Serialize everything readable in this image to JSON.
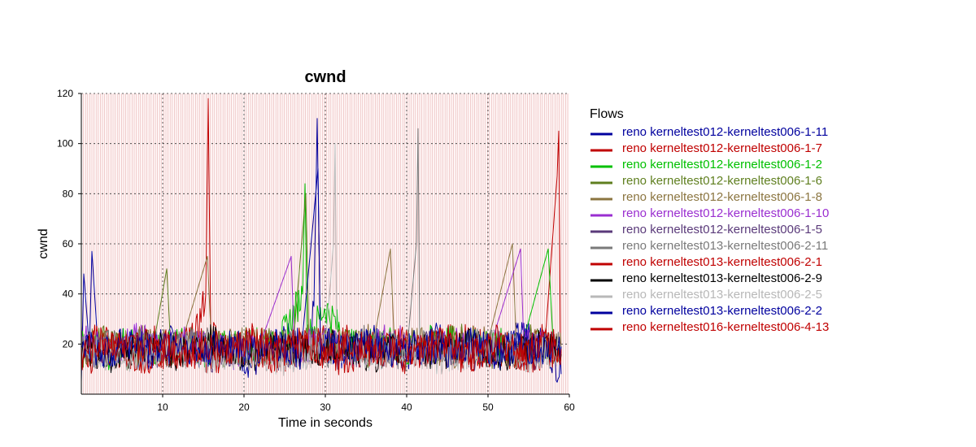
{
  "chart_data": {
    "type": "line",
    "title": "cwnd",
    "xlabel": "Time in seconds",
    "ylabel": "cwnd",
    "xlim": [
      0,
      60
    ],
    "ylim": [
      0,
      120
    ],
    "xticks": [
      10,
      20,
      30,
      40,
      50,
      60
    ],
    "yticks": [
      20,
      40,
      60,
      80,
      100,
      120
    ],
    "x_tick_labels": [
      "10",
      "20",
      "30",
      "40",
      "50",
      "60"
    ],
    "y_tick_labels": [
      "20",
      "40",
      "60",
      "80",
      "100",
      "120"
    ],
    "grid": true,
    "legend_title": "Flows",
    "legend_position": "right",
    "series": [
      {
        "name": "reno kerneltest012-kerneltest006-1-11",
        "color": "#00009e",
        "points": [
          [
            0,
            5
          ],
          [
            0.3,
            48
          ],
          [
            1,
            18
          ],
          [
            1.3,
            57
          ],
          [
            2,
            21
          ],
          [
            3,
            15
          ],
          [
            5,
            20
          ],
          [
            8,
            14
          ],
          [
            10,
            22
          ],
          [
            14,
            17
          ],
          [
            18,
            20
          ],
          [
            21,
            12
          ],
          [
            25,
            22
          ],
          [
            28,
            18
          ],
          [
            28.6,
            35
          ],
          [
            29,
            110
          ],
          [
            29.4,
            20
          ],
          [
            32,
            17
          ],
          [
            36,
            21
          ],
          [
            40,
            16
          ],
          [
            44,
            22
          ],
          [
            48,
            18
          ],
          [
            52,
            20
          ],
          [
            55,
            24
          ],
          [
            58,
            15
          ],
          [
            59,
            8
          ]
        ]
      },
      {
        "name": "reno kerneltest012-kerneltest006-1-7",
        "color": "#c00000",
        "points": [
          [
            0,
            18
          ],
          [
            2,
            22
          ],
          [
            5,
            17
          ],
          [
            8,
            21
          ],
          [
            11,
            19
          ],
          [
            14,
            22
          ],
          [
            15.3,
            40
          ],
          [
            15.6,
            118
          ],
          [
            15.9,
            25
          ],
          [
            18,
            18
          ],
          [
            22,
            20
          ],
          [
            26,
            16
          ],
          [
            30,
            21
          ],
          [
            34,
            18
          ],
          [
            38,
            20
          ],
          [
            42,
            17
          ],
          [
            46,
            22
          ],
          [
            50,
            19
          ],
          [
            54,
            16
          ],
          [
            57,
            20
          ],
          [
            58.5,
            87
          ],
          [
            58.7,
            105
          ],
          [
            58.9,
            20
          ]
        ]
      },
      {
        "name": "reno kerneltest012-kerneltest006-1-2",
        "color": "#00c000",
        "points": [
          [
            0,
            20
          ],
          [
            3,
            16
          ],
          [
            6,
            21
          ],
          [
            9,
            18
          ],
          [
            12,
            20
          ],
          [
            16,
            17
          ],
          [
            20,
            21
          ],
          [
            24,
            18
          ],
          [
            27.2,
            40
          ],
          [
            27.5,
            84
          ],
          [
            27.8,
            22
          ],
          [
            30,
            35
          ],
          [
            33,
            19
          ],
          [
            37,
            21
          ],
          [
            40,
            17
          ],
          [
            44,
            22
          ],
          [
            48,
            18
          ],
          [
            51,
            20
          ],
          [
            54,
            17
          ],
          [
            57.4,
            58
          ],
          [
            58,
            21
          ]
        ]
      },
      {
        "name": "reno kerneltest012-kerneltest006-1-6",
        "color": "#5f7f1f",
        "points": [
          [
            0,
            17
          ],
          [
            3,
            21
          ],
          [
            6,
            16
          ],
          [
            9,
            22
          ],
          [
            10.5,
            50
          ],
          [
            11,
            18
          ],
          [
            14,
            21
          ],
          [
            18,
            17
          ],
          [
            22,
            20
          ],
          [
            26,
            18
          ],
          [
            27.6,
            80
          ],
          [
            28,
            19
          ],
          [
            31,
            21
          ],
          [
            35,
            17
          ],
          [
            39,
            20
          ],
          [
            43,
            18
          ],
          [
            47,
            22
          ],
          [
            51,
            16
          ],
          [
            55,
            21
          ],
          [
            58,
            19
          ]
        ]
      },
      {
        "name": "reno kerneltest012-kerneltest006-1-8",
        "color": "#8b7540",
        "points": [
          [
            0,
            20
          ],
          [
            4,
            18
          ],
          [
            8,
            21
          ],
          [
            12,
            17
          ],
          [
            15.5,
            55
          ],
          [
            16,
            19
          ],
          [
            20,
            20
          ],
          [
            24,
            16
          ],
          [
            28,
            21
          ],
          [
            32,
            18
          ],
          [
            36,
            22
          ],
          [
            38,
            58
          ],
          [
            38.5,
            19
          ],
          [
            42,
            20
          ],
          [
            46,
            17
          ],
          [
            50,
            21
          ],
          [
            53,
            60
          ],
          [
            53.5,
            18
          ],
          [
            57,
            20
          ],
          [
            59,
            18
          ]
        ]
      },
      {
        "name": "reno kerneltest012-kerneltest006-1-10",
        "color": "#9a2ed0",
        "points": [
          [
            0,
            22
          ],
          [
            3,
            17
          ],
          [
            7,
            23
          ],
          [
            10,
            18
          ],
          [
            14,
            21
          ],
          [
            18,
            16
          ],
          [
            22,
            20
          ],
          [
            25.8,
            55
          ],
          [
            26.2,
            19
          ],
          [
            30,
            21
          ],
          [
            34,
            17
          ],
          [
            38,
            22
          ],
          [
            42,
            18
          ],
          [
            46,
            20
          ],
          [
            50,
            16
          ],
          [
            54,
            58
          ],
          [
            54.4,
            20
          ],
          [
            58,
            18
          ]
        ]
      },
      {
        "name": "reno kerneltest012-kerneltest006-1-5",
        "color": "#5a3a7a",
        "points": [
          [
            0,
            15
          ],
          [
            4,
            19
          ],
          [
            8,
            16
          ],
          [
            12,
            20
          ],
          [
            16,
            15
          ],
          [
            20,
            19
          ],
          [
            24,
            16
          ],
          [
            28,
            20
          ],
          [
            32,
            15
          ],
          [
            36,
            19
          ],
          [
            40,
            16
          ],
          [
            44,
            20
          ],
          [
            48,
            15
          ],
          [
            52,
            19
          ],
          [
            56,
            16
          ],
          [
            59,
            18
          ]
        ]
      },
      {
        "name": "reno kerneltest013-kerneltest006-2-11",
        "color": "#7a7a7a",
        "points": [
          [
            0,
            16
          ],
          [
            5,
            20
          ],
          [
            10,
            17
          ],
          [
            15,
            21
          ],
          [
            20,
            16
          ],
          [
            25,
            20
          ],
          [
            30,
            17
          ],
          [
            35,
            21
          ],
          [
            40,
            16
          ],
          [
            41.2,
            60
          ],
          [
            41.4,
            106
          ],
          [
            41.6,
            20
          ],
          [
            45,
            17
          ],
          [
            50,
            21
          ],
          [
            55,
            16
          ],
          [
            59,
            19
          ]
        ]
      },
      {
        "name": "reno kerneltest013-kerneltest006-2-1",
        "color": "#c00000",
        "points": [
          [
            0,
            14
          ],
          [
            4,
            18
          ],
          [
            8,
            15
          ],
          [
            12,
            19
          ],
          [
            16,
            14
          ],
          [
            20,
            18
          ],
          [
            24,
            15
          ],
          [
            28,
            19
          ],
          [
            32,
            14
          ],
          [
            36,
            18
          ],
          [
            40,
            15
          ],
          [
            44,
            19
          ],
          [
            48,
            14
          ],
          [
            52,
            18
          ],
          [
            56,
            15
          ],
          [
            59,
            17
          ]
        ]
      },
      {
        "name": "reno kerneltest013-kerneltest006-2-9",
        "color": "#000000",
        "points": [
          [
            0,
            19
          ],
          [
            4,
            15
          ],
          [
            8,
            20
          ],
          [
            12,
            16
          ],
          [
            16,
            21
          ],
          [
            20,
            15
          ],
          [
            24,
            19
          ],
          [
            28,
            16
          ],
          [
            32,
            20
          ],
          [
            36,
            15
          ],
          [
            40,
            19
          ],
          [
            44,
            16
          ],
          [
            48,
            20
          ],
          [
            52,
            15
          ],
          [
            56,
            19
          ],
          [
            59,
            16
          ]
        ]
      },
      {
        "name": "reno kerneltest013-kerneltest006-2-5",
        "color": "#b8b8b8",
        "points": [
          [
            0,
            18
          ],
          [
            5,
            14
          ],
          [
            10,
            19
          ],
          [
            15,
            15
          ],
          [
            20,
            18
          ],
          [
            25,
            14
          ],
          [
            30,
            19
          ],
          [
            31,
            60
          ],
          [
            31.2,
            100
          ],
          [
            31.4,
            20
          ],
          [
            35,
            15
          ],
          [
            40,
            18
          ],
          [
            45,
            14
          ],
          [
            50,
            19
          ],
          [
            55,
            15
          ],
          [
            59,
            18
          ]
        ]
      },
      {
        "name": "reno kerneltest013-kerneltest006-2-2",
        "color": "#00009e",
        "points": [
          [
            0,
            20
          ],
          [
            3,
            16
          ],
          [
            6,
            21
          ],
          [
            9,
            17
          ],
          [
            12,
            20
          ],
          [
            15,
            16
          ],
          [
            18,
            21
          ],
          [
            21,
            17
          ],
          [
            24,
            20
          ],
          [
            27,
            16
          ],
          [
            29.1,
            90
          ],
          [
            29.4,
            20
          ],
          [
            33,
            17
          ],
          [
            36,
            21
          ],
          [
            39,
            16
          ],
          [
            42,
            20
          ],
          [
            45,
            17
          ],
          [
            48,
            21
          ],
          [
            51,
            16
          ],
          [
            54,
            20
          ],
          [
            57,
            17
          ],
          [
            59,
            19
          ]
        ]
      },
      {
        "name": "reno kerneltest016-kerneltest006-4-13",
        "color": "#c00000",
        "points": [
          [
            0,
            16
          ],
          [
            3,
            21
          ],
          [
            6,
            17
          ],
          [
            9,
            22
          ],
          [
            12,
            16
          ],
          [
            15,
            20
          ],
          [
            18,
            17
          ],
          [
            21,
            22
          ],
          [
            24,
            16
          ],
          [
            27,
            21
          ],
          [
            30,
            17
          ],
          [
            33,
            22
          ],
          [
            36,
            16
          ],
          [
            39,
            21
          ],
          [
            42,
            17
          ],
          [
            45,
            22
          ],
          [
            48,
            16
          ],
          [
            51,
            21
          ],
          [
            54,
            17
          ],
          [
            57,
            22
          ],
          [
            59,
            18
          ]
        ]
      }
    ]
  }
}
